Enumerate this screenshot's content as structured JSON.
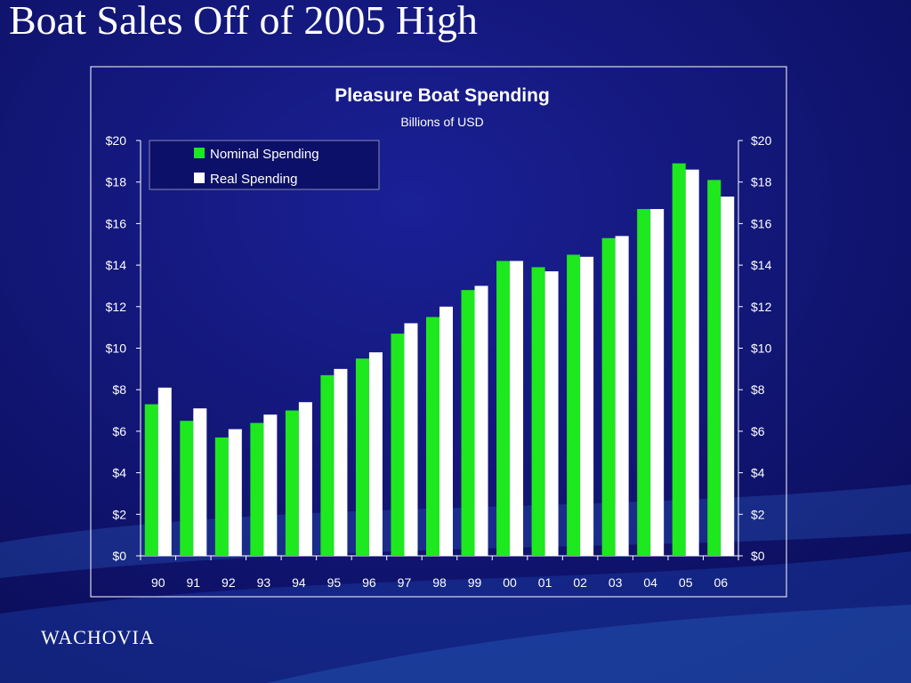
{
  "slide": {
    "title": "Boat Sales Off of 2005 High",
    "logo": "WACHOVIA"
  },
  "colors": {
    "background": "#0d1070",
    "nominal": "#1ee81e",
    "real": "#ffffff",
    "text": "#ffffff"
  },
  "chart_data": {
    "type": "bar",
    "title": "Pleasure Boat Spending",
    "subtitle": "Billions of USD",
    "categories": [
      "90",
      "91",
      "92",
      "93",
      "94",
      "95",
      "96",
      "97",
      "98",
      "99",
      "00",
      "01",
      "02",
      "03",
      "04",
      "05",
      "06"
    ],
    "series": [
      {
        "name": "Nominal Spending",
        "color": "#1ee81e",
        "values": [
          7.3,
          6.5,
          5.7,
          6.4,
          7.0,
          8.7,
          9.5,
          10.7,
          11.5,
          12.8,
          14.2,
          13.9,
          14.5,
          15.3,
          16.7,
          18.9,
          18.1
        ]
      },
      {
        "name": "Real Spending",
        "color": "#ffffff",
        "values": [
          8.1,
          7.1,
          6.1,
          6.8,
          7.4,
          9.0,
          9.8,
          11.2,
          12.0,
          13.0,
          14.2,
          13.7,
          14.4,
          15.4,
          16.7,
          18.6,
          17.3
        ]
      }
    ],
    "ylim": [
      0,
      20
    ],
    "yticks": [
      "$0",
      "$2",
      "$4",
      "$6",
      "$8",
      "$10",
      "$12",
      "$14",
      "$16",
      "$18",
      "$20"
    ],
    "ytick_values": [
      0,
      2,
      4,
      6,
      8,
      10,
      12,
      14,
      16,
      18,
      20
    ],
    "dual_y_axis": true,
    "grid": false,
    "legend_position": "top-left"
  }
}
